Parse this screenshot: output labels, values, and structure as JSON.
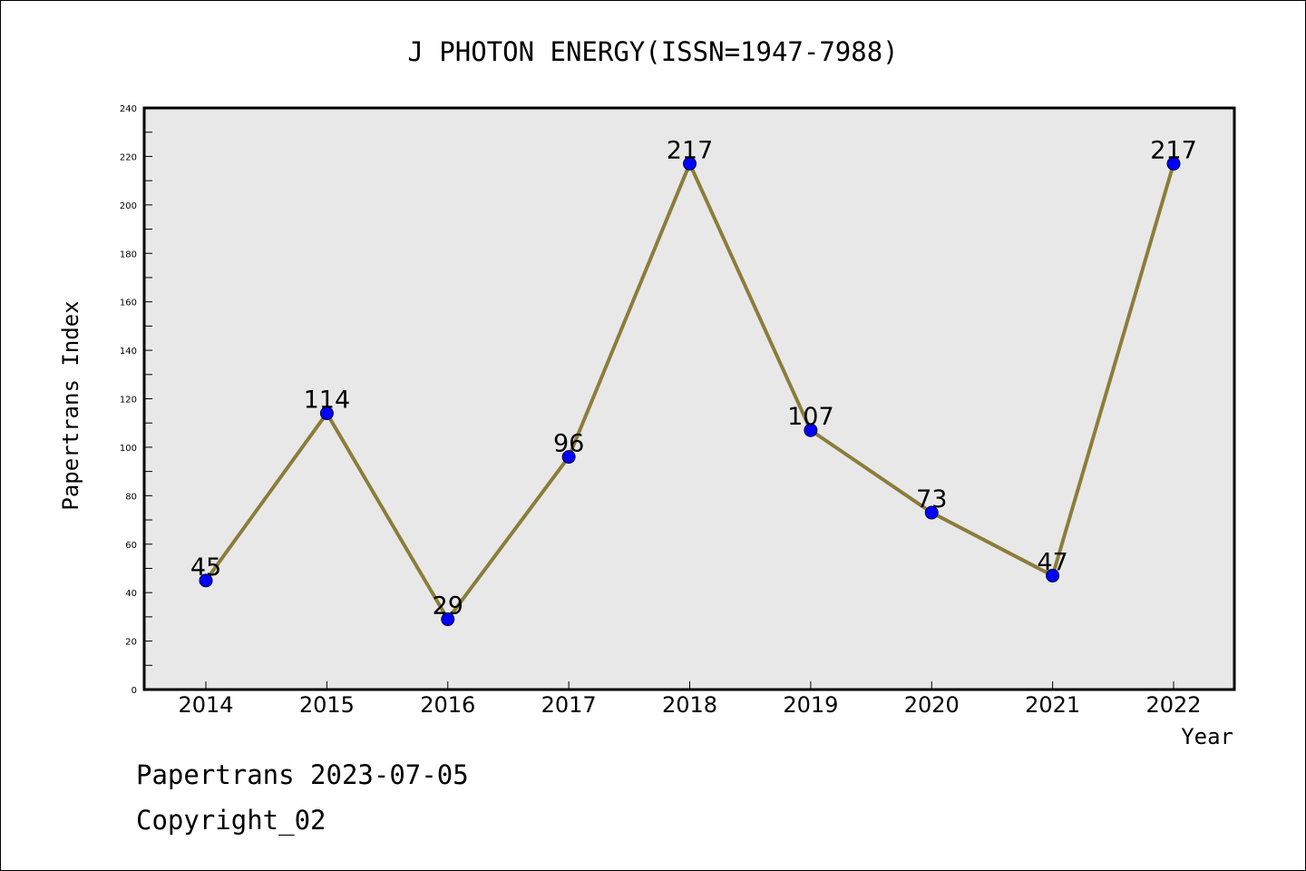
{
  "chart_data": {
    "type": "line",
    "title": "J PHOTON ENERGY(ISSN=1947-7988)",
    "xlabel": "Year",
    "ylabel": "Papertrans Index",
    "categories": [
      "2014",
      "2015",
      "2016",
      "2017",
      "2018",
      "2019",
      "2020",
      "2021",
      "2022"
    ],
    "values": [
      45,
      114,
      29,
      96,
      217,
      107,
      73,
      47,
      217
    ],
    "data_labels": [
      "45",
      "114",
      "29",
      "96",
      "217",
      "107",
      "73",
      "47",
      "217"
    ],
    "ylim": [
      0,
      240
    ],
    "yticks": [
      "0",
      "20",
      "40",
      "60",
      "80",
      "100",
      "120",
      "140",
      "160",
      "180",
      "200",
      "220",
      "240"
    ],
    "grid": false,
    "colors": {
      "line": "#8b7d3a",
      "marker": "#0000ff",
      "plot_background": "#e8e8e8"
    }
  },
  "footer": {
    "line1": "Papertrans 2023-07-05",
    "line2": "Copyright_02"
  }
}
